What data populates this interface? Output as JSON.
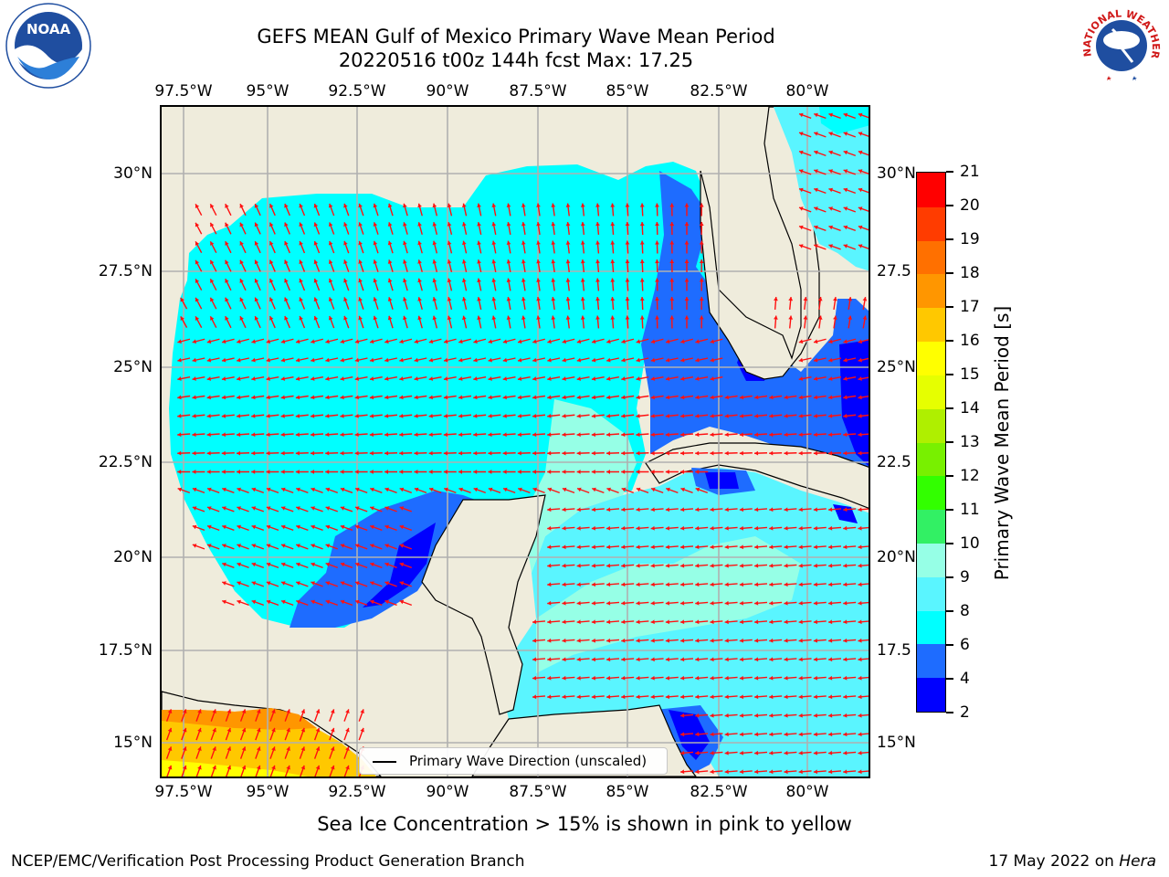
{
  "header": {
    "title_line1": "GEFS MEAN Gulf of Mexico Primary Wave Mean Period",
    "title_line2": "20220516 t00z 144h fcst   Max: 17.25"
  },
  "logos": {
    "left": {
      "text": "NOAA",
      "ring_text": "NATIONAL OCEANIC AND ATMOSPHERIC ADMINISTRATION · U.S. DEPARTMENT OF COMMERCE",
      "color": "#1f4ea0"
    },
    "right": {
      "ring_text": "NATIONAL WEATHER SERVICE",
      "color": "#d01818"
    }
  },
  "map": {
    "lon_labels": [
      "97.5°W",
      "95°W",
      "92.5°W",
      "90°W",
      "87.5°W",
      "85°W",
      "82.5°W",
      "80°W"
    ],
    "lat_labels_left": [
      "30°N",
      "27.5°N",
      "25°N",
      "22.5°N",
      "20°N",
      "17.5°N",
      "15°N"
    ],
    "lat_labels_right": [
      "30°N",
      "27.5",
      "25°N",
      "22.5",
      "20°N",
      "17.5",
      "15°N"
    ],
    "land_color": "#efecdc",
    "legend_label": "Primary Wave Direction (unscaled)",
    "arrow_color": "#ff1010"
  },
  "colorbar": {
    "title": "Primary Wave Mean Period [s]",
    "ticks": [
      "2",
      "4",
      "6",
      "8",
      "9",
      "10",
      "11",
      "12",
      "13",
      "14",
      "15",
      "16",
      "17",
      "18",
      "19",
      "20",
      "21"
    ],
    "colors": [
      "#0000ff",
      "#1e6cff",
      "#00ffff",
      "#5af5ff",
      "#96ffe6",
      "#32f064",
      "#32ff00",
      "#78f000",
      "#afef00",
      "#e6ff00",
      "#ffff00",
      "#ffc800",
      "#ff9600",
      "#ff7000",
      "#ff3c00",
      "#ff0000"
    ]
  },
  "footer": {
    "note": "Sea Ice Concentration > 15% is shown in pink to yellow",
    "left": "NCEP/EMC/Verification Post Processing Product Generation Branch",
    "right_prefix": "17 May 2022 on ",
    "right_machine": "Hera"
  }
}
